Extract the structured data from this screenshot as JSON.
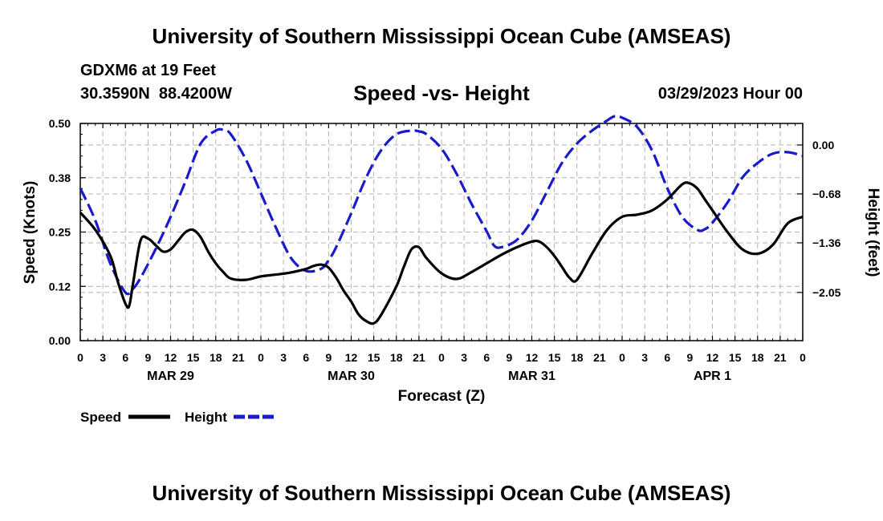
{
  "header": {
    "title": "University of Southern Mississippi Ocean Cube (AMSEAS)",
    "station": "GDXM6 at 19 Feet",
    "coordinates": "30.3590N  88.4200W",
    "chart_title": "Speed -vs- Height",
    "datetime": "03/29/2023 Hour 00"
  },
  "footer": {
    "title": "University of Southern Mississippi Ocean Cube (AMSEAS)"
  },
  "legend": {
    "speed_label": "Speed",
    "height_label": "Height"
  },
  "colors": {
    "speed": "#000000",
    "height": "#1a1acd",
    "grid": "#b4b4b4"
  },
  "chart_data": {
    "type": "line",
    "title": "Speed -vs- Height",
    "xlabel": "Forecast (Z)",
    "ylabel": "Speed (Knots)",
    "ylabel_right": "Height (feet)",
    "xlim": [
      0,
      96
    ],
    "ylim": [
      0,
      0.5
    ],
    "ylim_right": [
      -2.72,
      0.3
    ],
    "yticks": [
      0.0,
      0.125,
      0.25,
      0.375,
      0.5
    ],
    "ytick_labels": [
      "0.00",
      "0.12",
      "0.25",
      "0.38",
      "0.50"
    ],
    "yticks_right": [
      -2.05,
      -1.36,
      -0.68,
      0.0
    ],
    "ytick_labels_right": [
      "−2.05",
      "−1.36",
      "−0.68",
      "0.00"
    ],
    "xticks": [
      0,
      3,
      6,
      9,
      12,
      15,
      18,
      21,
      24,
      27,
      30,
      33,
      36,
      39,
      42,
      45,
      48,
      51,
      54,
      57,
      60,
      63,
      66,
      69,
      72,
      75,
      78,
      81,
      84,
      87,
      90,
      93,
      96
    ],
    "xtick_labels": [
      "0",
      "3",
      "6",
      "9",
      "12",
      "15",
      "18",
      "21",
      "0",
      "3",
      "6",
      "9",
      "12",
      "15",
      "18",
      "21",
      "0",
      "3",
      "6",
      "9",
      "12",
      "15",
      "18",
      "21",
      "0",
      "3",
      "6",
      "9",
      "12",
      "15",
      "18",
      "21",
      "0"
    ],
    "date_labels": [
      {
        "x": 12,
        "label": "MAR 29"
      },
      {
        "x": 36,
        "label": "MAR 30"
      },
      {
        "x": 60,
        "label": "MAR 31"
      },
      {
        "x": 84,
        "label": "APR 1"
      }
    ],
    "grid": true,
    "series": [
      {
        "name": "Speed",
        "axis": "left",
        "style": "solid",
        "x": [
          0,
          2,
          4,
          5,
          6,
          6.5,
          7,
          8,
          9,
          10,
          11,
          12,
          13,
          14,
          15,
          16,
          17,
          18,
          19,
          20,
          22,
          24,
          26,
          28,
          30,
          31,
          32,
          33,
          34,
          35,
          36,
          37,
          38,
          39,
          40,
          42,
          43,
          44,
          45,
          46,
          48,
          50,
          52,
          54,
          56,
          58,
          60,
          61,
          62,
          63,
          64,
          65,
          66,
          68,
          70,
          72,
          74,
          76,
          78,
          80,
          81,
          82,
          83,
          84,
          86,
          88,
          90,
          92,
          94,
          96
        ],
        "values": [
          0.295,
          0.255,
          0.195,
          0.135,
          0.085,
          0.08,
          0.13,
          0.23,
          0.235,
          0.22,
          0.205,
          0.21,
          0.23,
          0.25,
          0.255,
          0.238,
          0.205,
          0.178,
          0.158,
          0.143,
          0.14,
          0.148,
          0.152,
          0.157,
          0.165,
          0.172,
          0.175,
          0.168,
          0.145,
          0.115,
          0.09,
          0.06,
          0.045,
          0.04,
          0.06,
          0.125,
          0.17,
          0.21,
          0.215,
          0.19,
          0.155,
          0.142,
          0.158,
          0.178,
          0.198,
          0.215,
          0.228,
          0.228,
          0.215,
          0.195,
          0.17,
          0.145,
          0.14,
          0.2,
          0.255,
          0.285,
          0.29,
          0.3,
          0.325,
          0.36,
          0.362,
          0.35,
          0.325,
          0.3,
          0.25,
          0.21,
          0.2,
          0.22,
          0.27,
          0.285
        ]
      },
      {
        "name": "Height",
        "axis": "right",
        "style": "dashed",
        "x": [
          0,
          2,
          4,
          6,
          7,
          8,
          10,
          12,
          14,
          16,
          18,
          19,
          20,
          22,
          24,
          26,
          28,
          30,
          32,
          33,
          34,
          36,
          38,
          40,
          42,
          44,
          45,
          46,
          48,
          50,
          52,
          54,
          55,
          56,
          58,
          60,
          62,
          64,
          66,
          68,
          70,
          71,
          72,
          74,
          76,
          78,
          80,
          82,
          83,
          84,
          86,
          88,
          90,
          92,
          94,
          96
        ],
        "values": [
          -0.6,
          -1.05,
          -1.65,
          -2.05,
          -2.0,
          -1.85,
          -1.45,
          -1.0,
          -0.5,
          0.02,
          0.2,
          0.21,
          0.15,
          -0.2,
          -0.67,
          -1.15,
          -1.57,
          -1.75,
          -1.72,
          -1.6,
          -1.42,
          -0.95,
          -0.45,
          -0.07,
          0.15,
          0.2,
          0.19,
          0.15,
          -0.05,
          -0.4,
          -0.82,
          -1.2,
          -1.4,
          -1.42,
          -1.32,
          -1.05,
          -0.65,
          -0.25,
          0.02,
          0.2,
          0.34,
          0.4,
          0.38,
          0.25,
          -0.08,
          -0.6,
          -1.0,
          -1.18,
          -1.17,
          -1.08,
          -0.8,
          -0.45,
          -0.25,
          -0.12,
          -0.1,
          -0.15
        ]
      }
    ]
  }
}
